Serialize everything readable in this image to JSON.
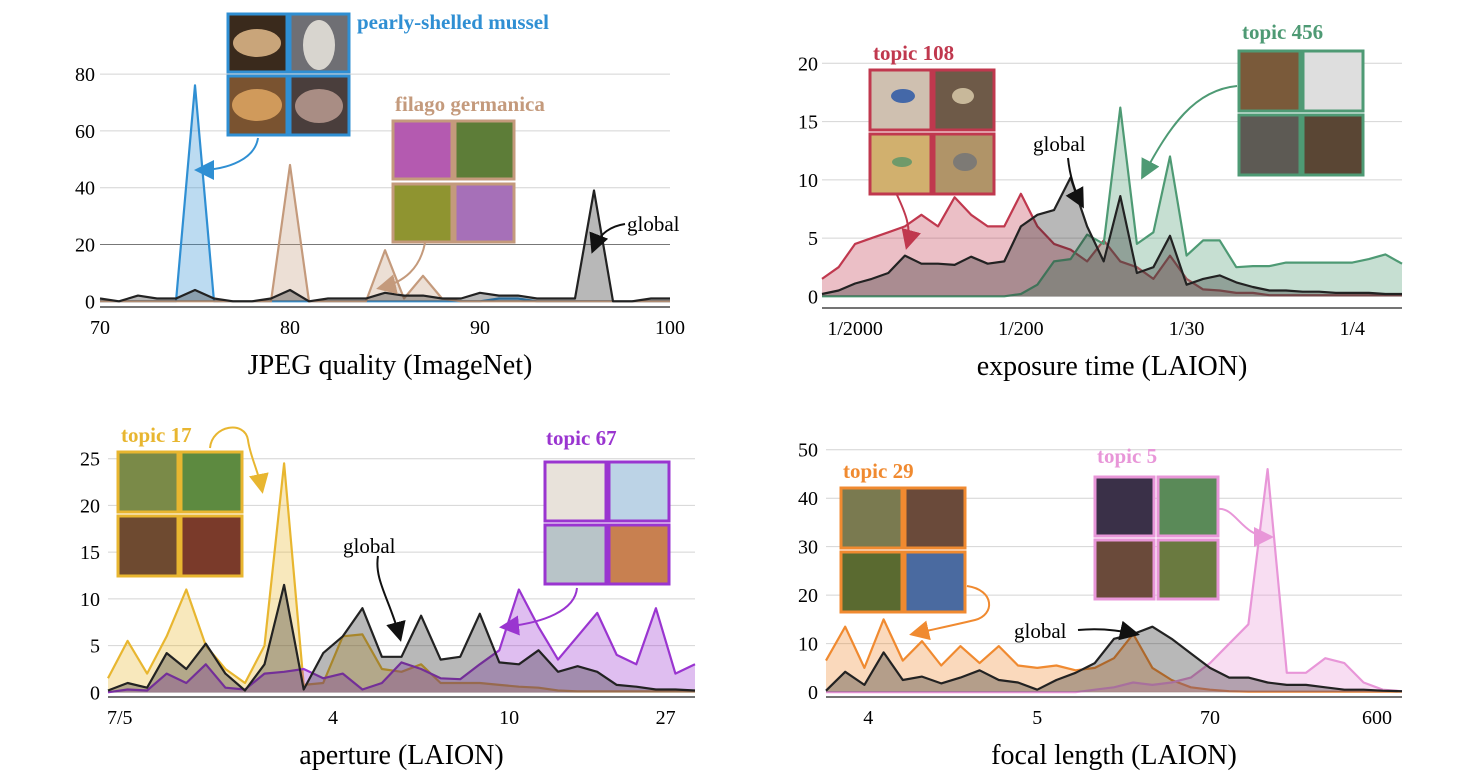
{
  "chart_data": [
    {
      "type": "area",
      "xlabel": "JPEG quality (ImageNet)",
      "xlim": [
        70,
        100
      ],
      "ylim": [
        -2,
        92
      ],
      "xticks": [
        70,
        80,
        90,
        100
      ],
      "yticks": [
        0,
        20,
        40,
        60,
        80
      ],
      "grid": true,
      "series": [
        {
          "name": "pearly-shelled mussel",
          "color": "#2f8fd3",
          "x": [
            70,
            71,
            72,
            73,
            74,
            75,
            76,
            77,
            78,
            79,
            80,
            81,
            82,
            83,
            84,
            85,
            86,
            87,
            88,
            89,
            90,
            91,
            92,
            93,
            94,
            95,
            96,
            97,
            98,
            99,
            100
          ],
          "y": [
            0,
            0,
            0,
            0,
            0,
            76,
            0,
            0,
            0,
            0,
            0,
            0,
            0,
            0,
            0,
            0,
            0,
            0,
            0,
            0,
            0,
            1,
            1,
            0,
            0,
            0,
            0,
            0,
            0,
            0,
            0
          ]
        },
        {
          "name": "filago germanica",
          "color": "#c49a7c",
          "x": [
            70,
            71,
            72,
            73,
            74,
            75,
            76,
            77,
            78,
            79,
            80,
            81,
            82,
            83,
            84,
            85,
            86,
            87,
            88,
            89,
            90,
            91,
            92,
            93,
            94,
            95,
            96,
            97,
            98,
            99,
            100
          ],
          "y": [
            0,
            0,
            0,
            0,
            0,
            0,
            0,
            0,
            0,
            0,
            48,
            0,
            0,
            0,
            0,
            18,
            1,
            9,
            1,
            0,
            0,
            0,
            0,
            0,
            0,
            0,
            0,
            0,
            0,
            0,
            0
          ]
        },
        {
          "name": "global",
          "color": "#222222",
          "x": [
            70,
            71,
            72,
            73,
            74,
            75,
            76,
            77,
            78,
            79,
            80,
            81,
            82,
            83,
            84,
            85,
            86,
            87,
            88,
            89,
            90,
            91,
            92,
            93,
            94,
            95,
            96,
            97,
            98,
            99,
            100
          ],
          "y": [
            1,
            0,
            2,
            1,
            1,
            4,
            1,
            0,
            0,
            1,
            4,
            0,
            1,
            1,
            1,
            3,
            2,
            2,
            1,
            1,
            3,
            2,
            2,
            1,
            1,
            1,
            39,
            0,
            0,
            1,
            1
          ]
        }
      ],
      "annotations": [
        "pearly-shelled mussel",
        "filago germanica",
        "global"
      ]
    },
    {
      "type": "area",
      "xlabel": "exposure time (LAION)",
      "xlim": [
        0,
        35
      ],
      "ylim": [
        -1,
        22
      ],
      "xtick_labels": [
        "1/2000",
        "1/200",
        "1/30",
        "1/4"
      ],
      "xtick_positions": [
        2,
        12,
        22,
        32
      ],
      "yticks": [
        0,
        5,
        10,
        15,
        20
      ],
      "grid": true,
      "series": [
        {
          "name": "topic 108",
          "color": "#c0384e",
          "x": [
            0,
            1,
            2,
            3,
            4,
            5,
            6,
            7,
            8,
            9,
            10,
            11,
            12,
            13,
            14,
            15,
            16,
            17,
            18,
            19,
            20,
            21,
            22,
            23,
            24,
            25,
            26,
            27,
            28,
            29,
            30,
            31,
            32,
            33,
            34,
            35
          ],
          "y": [
            1.5,
            2.5,
            4.5,
            5,
            5.5,
            6,
            7,
            6,
            8.5,
            7,
            6,
            6,
            8.8,
            6,
            4.5,
            4,
            3,
            4.8,
            3,
            2.5,
            1.5,
            3.5,
            1.5,
            0.6,
            0.5,
            0.3,
            0.3,
            0.1,
            0.1,
            0.1,
            0.1,
            0.1,
            0.1,
            0.1,
            0.1,
            0.1
          ]
        },
        {
          "name": "topic 456",
          "color": "#4e9a74",
          "x": [
            0,
            1,
            2,
            3,
            4,
            5,
            6,
            7,
            8,
            9,
            10,
            11,
            12,
            13,
            14,
            15,
            16,
            17,
            18,
            19,
            20,
            21,
            22,
            23,
            24,
            25,
            26,
            27,
            28,
            29,
            30,
            31,
            32,
            33,
            34,
            35
          ],
          "y": [
            0,
            0,
            0,
            0,
            0,
            0,
            0,
            0,
            0,
            0,
            0,
            0,
            0.2,
            1,
            3,
            3.2,
            5.3,
            4.5,
            16.2,
            4.5,
            5.5,
            12,
            3.5,
            4.8,
            4.8,
            2.5,
            2.6,
            2.6,
            2.9,
            2.9,
            2.9,
            2.9,
            2.9,
            3.2,
            3.6,
            2.8
          ]
        },
        {
          "name": "global",
          "color": "#222222",
          "x": [
            0,
            1,
            2,
            3,
            4,
            5,
            6,
            7,
            8,
            9,
            10,
            11,
            12,
            13,
            14,
            15,
            16,
            17,
            18,
            19,
            20,
            21,
            22,
            23,
            24,
            25,
            26,
            27,
            28,
            29,
            30,
            31,
            32,
            33,
            34,
            35
          ],
          "y": [
            0.2,
            0.5,
            1.1,
            1.5,
            2,
            3.5,
            2.8,
            2.8,
            2.7,
            3.4,
            2.8,
            3,
            6,
            7,
            7.4,
            10.2,
            6,
            3,
            8.6,
            2,
            2.5,
            5.2,
            1,
            1.5,
            1.8,
            1.2,
            0.8,
            0.5,
            0.5,
            0.4,
            0.4,
            0.3,
            0.3,
            0.3,
            0.2,
            0.2
          ]
        }
      ],
      "annotations": [
        "topic 108",
        "topic 456",
        "global"
      ]
    },
    {
      "type": "area",
      "xlabel": "aperture (LAION)",
      "xlim": [
        0,
        30
      ],
      "ylim": [
        -0.5,
        27
      ],
      "xtick_labels": [
        "7/5",
        "4",
        "10",
        "27"
      ],
      "xtick_positions": [
        0.6,
        11.5,
        20.5,
        28.5
      ],
      "yticks": [
        0,
        5,
        10,
        15,
        20,
        25
      ],
      "grid": true,
      "series": [
        {
          "name": "topic 17",
          "color": "#e8b630",
          "x": [
            0,
            1,
            2,
            3,
            4,
            5,
            6,
            7,
            8,
            9,
            10,
            11,
            12,
            13,
            14,
            15,
            16,
            17,
            18,
            19,
            20,
            21,
            22,
            23,
            24,
            25,
            26,
            27,
            28,
            29,
            30
          ],
          "y": [
            1.5,
            5.5,
            2,
            6,
            11,
            5,
            2.5,
            1,
            5,
            24.5,
            0.8,
            1,
            6,
            6.2,
            2.5,
            2.2,
            3,
            1,
            1,
            1,
            0.8,
            0.6,
            0.5,
            0.2,
            0.1,
            0.1,
            0.1,
            0.1,
            0.1,
            0.1,
            0.1
          ]
        },
        {
          "name": "topic 67",
          "color": "#9a35d0",
          "x": [
            0,
            1,
            2,
            3,
            4,
            5,
            6,
            7,
            8,
            9,
            10,
            11,
            12,
            13,
            14,
            15,
            16,
            17,
            18,
            19,
            20,
            21,
            22,
            23,
            24,
            25,
            26,
            27,
            28,
            29,
            30
          ],
          "y": [
            0,
            0.3,
            0.2,
            2,
            1,
            3,
            0.5,
            0.3,
            2,
            2.2,
            2.5,
            1.5,
            2,
            0.3,
            1,
            3.2,
            2.5,
            1.5,
            1.4,
            3,
            4.5,
            11,
            7,
            3.5,
            6,
            8.5,
            4,
            3,
            9,
            2,
            3
          ]
        },
        {
          "name": "global",
          "color": "#222222",
          "x": [
            0,
            1,
            2,
            3,
            4,
            5,
            6,
            7,
            8,
            9,
            10,
            11,
            12,
            13,
            14,
            15,
            16,
            17,
            18,
            19,
            20,
            21,
            22,
            23,
            24,
            25,
            26,
            27,
            28,
            29,
            30
          ],
          "y": [
            0.2,
            1,
            0.5,
            4.2,
            2.5,
            5.2,
            2,
            0.2,
            3,
            11.5,
            0.3,
            4.2,
            6,
            9,
            3.8,
            3.8,
            8.2,
            3.5,
            3.8,
            8.4,
            3.2,
            3,
            4.5,
            2.2,
            2.8,
            2.2,
            0.8,
            0.6,
            0.3,
            0.3,
            0.2
          ]
        }
      ],
      "annotations": [
        "topic 17",
        "topic 67",
        "global"
      ]
    },
    {
      "type": "area",
      "xlabel": "focal length (LAION)",
      "xlim": [
        0,
        30
      ],
      "ylim": [
        -1,
        52
      ],
      "xtick_labels": [
        "4",
        "5",
        "70",
        "600"
      ],
      "xtick_positions": [
        2.2,
        11,
        20,
        28.7
      ],
      "yticks": [
        0,
        10,
        20,
        30,
        40,
        50
      ],
      "grid": true,
      "series": [
        {
          "name": "topic 29",
          "color": "#f08a30",
          "x": [
            0,
            1,
            2,
            3,
            4,
            5,
            6,
            7,
            8,
            9,
            10,
            11,
            12,
            13,
            14,
            15,
            16,
            17,
            18,
            19,
            20,
            21,
            22,
            23,
            24,
            25,
            26,
            27,
            28,
            29,
            30
          ],
          "y": [
            6.5,
            13.5,
            5,
            15,
            6.5,
            10.5,
            5.5,
            9.5,
            6,
            9.5,
            5.5,
            5,
            5.5,
            4.5,
            5,
            7,
            12,
            5,
            2.5,
            1,
            0.5,
            0.2,
            0.1,
            0.1,
            0.1,
            0.1,
            0.1,
            0.1,
            0.1,
            0.1,
            0.1
          ]
        },
        {
          "name": "topic 5",
          "color": "#e896d8",
          "x": [
            0,
            1,
            2,
            3,
            4,
            5,
            6,
            7,
            8,
            9,
            10,
            11,
            12,
            13,
            14,
            15,
            16,
            17,
            18,
            19,
            20,
            21,
            22,
            23,
            24,
            25,
            26,
            27,
            28,
            29,
            30
          ],
          "y": [
            0,
            0,
            0,
            0,
            0,
            0,
            0,
            0,
            0,
            0,
            0,
            0,
            0,
            0,
            0.5,
            1,
            2,
            1.5,
            2,
            3,
            6,
            10,
            14,
            46,
            4,
            4,
            7,
            6,
            2,
            0.5,
            0.2
          ]
        },
        {
          "name": "global",
          "color": "#222222",
          "x": [
            0,
            1,
            2,
            3,
            4,
            5,
            6,
            7,
            8,
            9,
            10,
            11,
            12,
            13,
            14,
            15,
            16,
            17,
            18,
            19,
            20,
            21,
            22,
            23,
            24,
            25,
            26,
            27,
            28,
            29,
            30
          ],
          "y": [
            0.3,
            4.2,
            1.5,
            8.2,
            2.5,
            3.2,
            1.8,
            3,
            4.5,
            2.5,
            2,
            0.5,
            2.5,
            4,
            6,
            11,
            12,
            13.5,
            11,
            8,
            5,
            3,
            3,
            2,
            1.5,
            1.5,
            1,
            0.5,
            0.5,
            0.3,
            0.2
          ]
        }
      ],
      "annotations": [
        "topic 29",
        "topic 5",
        "global"
      ]
    }
  ]
}
